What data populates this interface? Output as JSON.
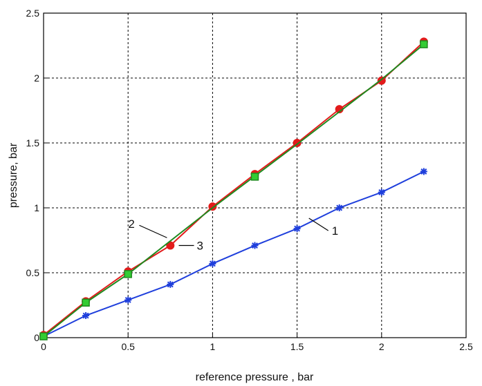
{
  "chart_data": {
    "type": "line",
    "title": "",
    "xlabel": "reference pressure , bar",
    "ylabel": "pressure, bar",
    "xlim": [
      0,
      2.5
    ],
    "ylim": [
      0,
      2.5
    ],
    "grid": true,
    "legend": "none",
    "x_ticks": [
      "0",
      "0.5",
      "1",
      "1.5",
      "2",
      "2.5"
    ],
    "y_ticks": [
      "0",
      "0.5",
      "1",
      "1.5",
      "2",
      "2.5"
    ],
    "series": [
      {
        "label": "1",
        "color": "#1f3fdc",
        "marker": "star",
        "x": [
          0,
          0.25,
          0.5,
          0.75,
          1.0,
          1.25,
          1.5,
          1.75,
          2.0,
          2.25
        ],
        "y": [
          0.01,
          0.17,
          0.29,
          0.41,
          0.57,
          0.71,
          0.84,
          1.0,
          1.12,
          1.28
        ]
      },
      {
        "label": "3",
        "color": "#e21b1b",
        "marker": "circle",
        "x": [
          0,
          0.25,
          0.5,
          0.75,
          1.0,
          1.25,
          1.5,
          1.75,
          2.0,
          2.25
        ],
        "y": [
          0.02,
          0.28,
          0.51,
          0.71,
          1.01,
          1.26,
          1.5,
          1.76,
          1.98,
          2.28
        ]
      },
      {
        "label": "2",
        "color": "#1f8a1f",
        "marker_fill": "#33cc33",
        "marker": "square",
        "x": [
          0,
          0.25,
          0.5,
          1.25,
          2.25
        ],
        "y": [
          0.01,
          0.27,
          0.49,
          1.24,
          2.26
        ],
        "line_x": [
          0,
          0.25,
          0.5,
          1.0,
          1.5,
          1.75,
          2.0,
          2.25
        ],
        "line_y": [
          0.01,
          0.27,
          0.49,
          1.0,
          1.49,
          1.74,
          1.99,
          2.26
        ]
      }
    ],
    "annotations": [
      {
        "text": "1",
        "anchor_x": 1.57,
        "anchor_y": 0.92
      },
      {
        "text": "2",
        "anchor_x": 0.73,
        "anchor_y": 0.77
      },
      {
        "text": "3",
        "anchor_x": 0.8,
        "anchor_y": 0.71
      }
    ]
  }
}
